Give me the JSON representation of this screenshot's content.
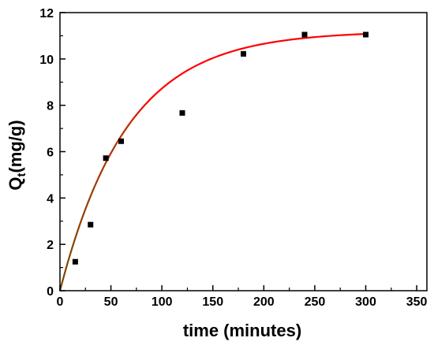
{
  "chart_data": {
    "type": "scatter",
    "xlabel": "time (minutes)",
    "ylabel_main": "Q",
    "ylabel_sub": "t",
    "ylabel_rest": "(mg/g)",
    "xlim": [
      0,
      360
    ],
    "ylim": [
      0,
      12
    ],
    "xticks": [
      0,
      50,
      100,
      150,
      200,
      250,
      300,
      350
    ],
    "yticks": [
      0,
      2,
      4,
      6,
      8,
      10,
      12
    ],
    "grid": false,
    "legend": "none",
    "series": [
      {
        "kind": "points",
        "marker": "square",
        "color": "#000000",
        "x": [
          15,
          30,
          45,
          60,
          120,
          180,
          240,
          300
        ],
        "y": [
          1.25,
          2.85,
          5.72,
          6.45,
          7.67,
          10.22,
          11.05,
          11.05
        ]
      },
      {
        "kind": "fit-curve",
        "model": "pseudo-first-order",
        "qe": 11.2,
        "k1": 0.0151,
        "color_start": "#7a4a00",
        "color_end": "#ff0000",
        "x_range": [
          0,
          300
        ]
      }
    ]
  }
}
